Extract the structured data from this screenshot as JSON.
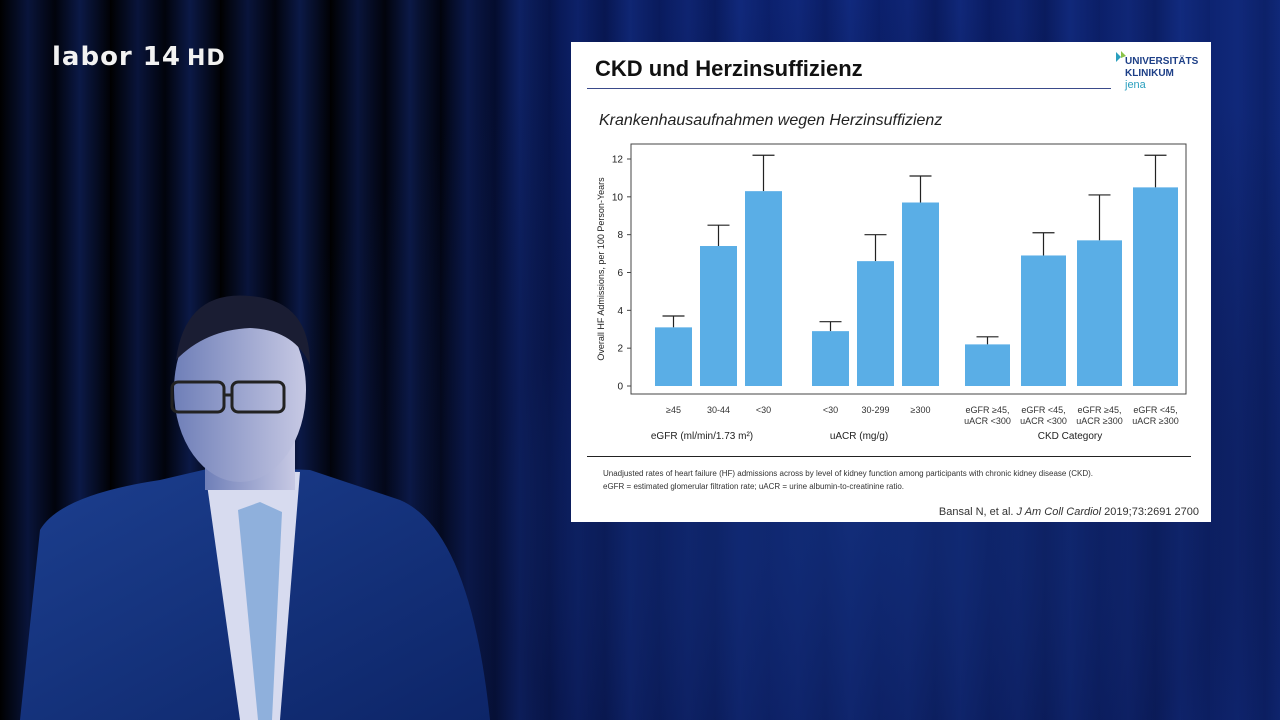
{
  "broadcast_logo": {
    "brand": "labor 14",
    "badge": "HD"
  },
  "slide": {
    "title": "CKD und Herzinsuffizienz",
    "logo": {
      "line1": "UNIVERSITÄTS",
      "line2": "KLINIKUM",
      "line3": "jena"
    },
    "subtitle": "Krankenhausaufnahmen wegen Herzinsuffizienz",
    "caption_line1": "Unadjusted rates of heart failure (HF) admissions across by level of kidney function among participants with chronic kidney disease (CKD).",
    "caption_line2": "eGFR = estimated glomerular filtration rate; uACR = urine albumin-to-creatinine ratio.",
    "reference_authors": "Bansal N, et al.",
    "reference_journal": "J Am Coll Cardiol",
    "reference_detail": "2019;73:2691 2700"
  },
  "colors": {
    "bar": "#5aaee6",
    "error_bar": "#222222",
    "axis": "#444444"
  },
  "chart_data": {
    "type": "bar",
    "ylabel": "Overall HF Admissions, per 100 Person-Years",
    "ylim": [
      0,
      13
    ],
    "yticks": [
      0,
      2,
      4,
      6,
      8,
      10,
      12
    ],
    "grid": false,
    "groups": [
      {
        "label": "eGFR (ml/min/1.73 m²)",
        "bars": [
          {
            "label": "≥45",
            "value": 3.1,
            "error_upper": 3.7
          },
          {
            "label": "30-44",
            "value": 7.4,
            "error_upper": 8.5
          },
          {
            "label": "<30",
            "value": 10.3,
            "error_upper": 12.2
          }
        ]
      },
      {
        "label": "uACR (mg/g)",
        "bars": [
          {
            "label": "<30",
            "value": 2.9,
            "error_upper": 3.4
          },
          {
            "label": "30-299",
            "value": 6.6,
            "error_upper": 8.0
          },
          {
            "label": "≥300",
            "value": 9.7,
            "error_upper": 11.1
          }
        ]
      },
      {
        "label": "CKD Category",
        "bars": [
          {
            "label": "eGFR ≥45,",
            "label2": "uACR <300",
            "value": 2.2,
            "error_upper": 2.6
          },
          {
            "label": "eGFR <45,",
            "label2": "uACR <300",
            "value": 6.9,
            "error_upper": 8.1
          },
          {
            "label": "eGFR ≥45,",
            "label2": "uACR ≥300",
            "value": 7.7,
            "error_upper": 10.1
          },
          {
            "label": "eGFR <45,",
            "label2": "uACR ≥300",
            "value": 10.5,
            "error_upper": 12.2
          }
        ]
      }
    ]
  }
}
